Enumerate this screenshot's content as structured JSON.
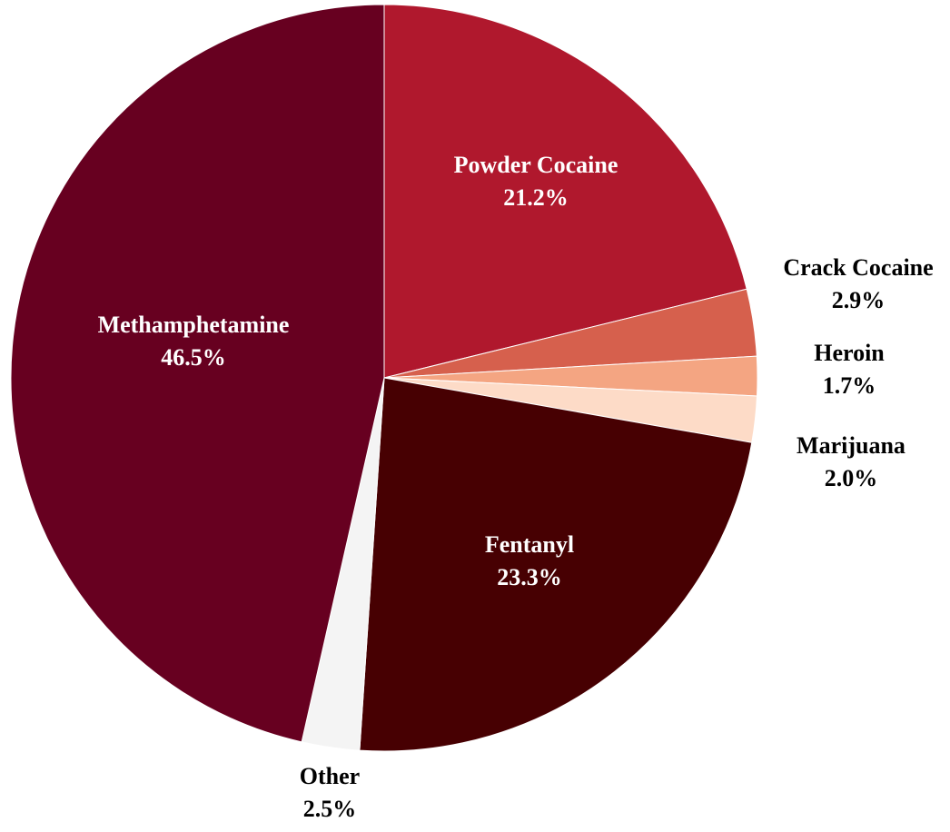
{
  "chart_data": {
    "type": "pie",
    "slices": [
      {
        "name": "Powder Cocaine",
        "value": 21.2,
        "label": "21.2%",
        "color": "#b0182d",
        "text_color": "#ffffff"
      },
      {
        "name": "Crack Cocaine",
        "value": 2.9,
        "label": "2.9%",
        "color": "#d6604d",
        "text_color": "#000000"
      },
      {
        "name": "Heroin",
        "value": 1.7,
        "label": "1.7%",
        "color": "#f4a582",
        "text_color": "#000000"
      },
      {
        "name": "Marijuana",
        "value": 2.0,
        "label": "2.0%",
        "color": "#fddbc7",
        "text_color": "#000000"
      },
      {
        "name": "Fentanyl",
        "value": 23.3,
        "label": "23.3%",
        "color": "#470002",
        "text_color": "#ffffff"
      },
      {
        "name": "Other",
        "value": 2.5,
        "label": "2.5%",
        "color": "#f4f4f4",
        "text_color": "#000000"
      },
      {
        "name": "Methamphetamine",
        "value": 46.5,
        "label": "46.5%",
        "color": "#670020",
        "text_color": "#ffffff"
      }
    ],
    "start": "12 o'clock",
    "direction": "clockwise",
    "title": "",
    "legend": "none"
  }
}
